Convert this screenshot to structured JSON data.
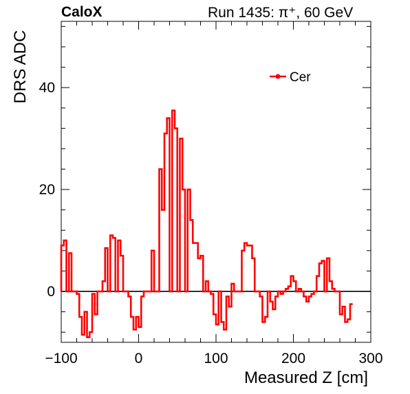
{
  "header": {
    "experiment": "CaloX",
    "run_info": "Run 1435:   π⁺, 60 GeV"
  },
  "chart_data": {
    "type": "line",
    "title": "",
    "xlabel": "Measured Z [cm]",
    "ylabel": "DRS ADC",
    "xlim": [
      -100,
      300
    ],
    "ylim": [
      -10,
      53
    ],
    "xticks": [
      -100,
      0,
      100,
      200,
      300
    ],
    "xtick_labels": [
      "−100",
      "0",
      "100",
      "200",
      "300"
    ],
    "yticks": [
      0,
      20,
      40
    ],
    "ytick_labels": [
      "0",
      "20",
      "40"
    ],
    "grid": false,
    "legend": {
      "position": "top-right",
      "entries": [
        "Cer"
      ]
    },
    "colors": {
      "series": "#ff0000",
      "zero_line": "#000000"
    },
    "series": [
      {
        "name": "Cer",
        "bin_width": 3.333,
        "x_start": -100,
        "values": [
          9,
          10,
          0,
          7.5,
          0,
          0,
          -0.5,
          -5,
          -8.5,
          -4,
          -9,
          -8,
          -0.5,
          -4.5,
          0,
          0,
          2,
          8.5,
          0,
          11,
          10.5,
          0,
          10,
          7,
          0,
          0,
          -1,
          -5,
          -7.5,
          -5,
          -7,
          -1,
          0,
          0,
          0,
          8,
          0,
          0,
          24,
          16,
          31,
          34,
          0,
          35.5,
          32,
          0,
          30,
          20,
          0,
          20,
          14,
          9.5,
          9.5,
          6.5,
          7,
          0,
          2,
          0,
          -0.5,
          -4.5,
          -6.5,
          0,
          -6,
          -7.5,
          -1,
          -3,
          1.5,
          0,
          0,
          0,
          8,
          9.5,
          9,
          9,
          6.5,
          0,
          0,
          -1,
          -6,
          -5,
          0,
          -2,
          -3.5,
          -1,
          0,
          -0.5,
          0,
          0.5,
          1,
          3,
          2,
          0,
          0.5,
          0,
          -1,
          -2,
          -1,
          -0.5,
          0,
          3,
          5.5,
          6,
          0,
          6.5,
          2,
          0.5,
          0,
          0,
          -4.5,
          -3,
          -6,
          -5.5,
          -2.5
        ]
      }
    ]
  }
}
